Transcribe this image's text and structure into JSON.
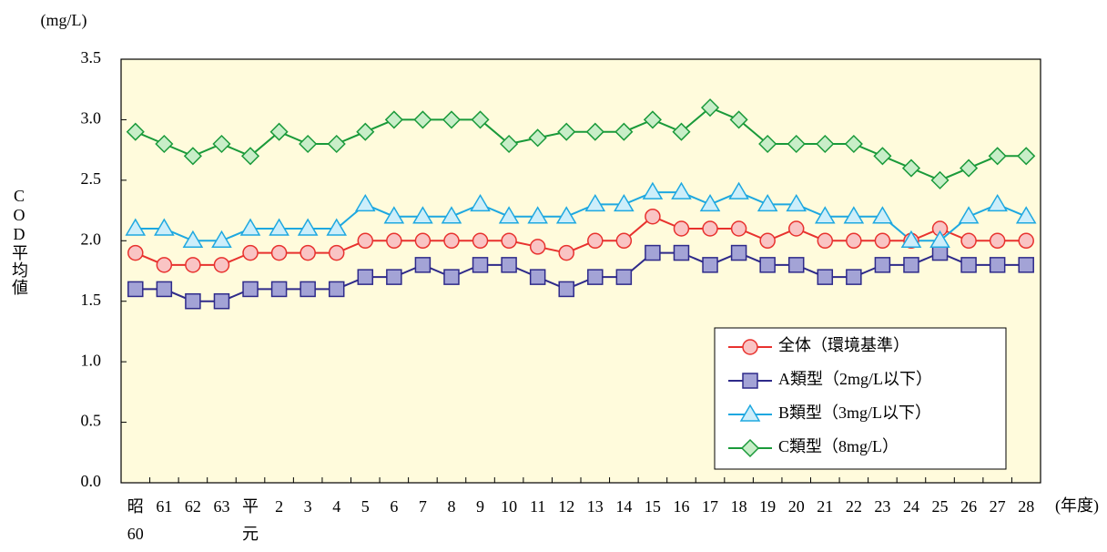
{
  "chart_data": {
    "type": "line",
    "unit_label": "(mg/L)",
    "y_label": "COD平均値",
    "x_unit_label": "(年度)",
    "categories": [
      "昭\n60",
      "61",
      "62",
      "63",
      "平\n元",
      "2",
      "3",
      "4",
      "5",
      "6",
      "7",
      "8",
      "9",
      "10",
      "11",
      "12",
      "13",
      "14",
      "15",
      "16",
      "17",
      "18",
      "19",
      "20",
      "21",
      "22",
      "23",
      "24",
      "25",
      "26",
      "27",
      "28"
    ],
    "series": [
      {
        "name": "全体（環境基準）",
        "color": "#e8322e",
        "marker_color": "#f9c4c4",
        "marker": "circle",
        "values": [
          1.9,
          1.8,
          1.8,
          1.8,
          1.9,
          1.9,
          1.9,
          1.9,
          2.0,
          2.0,
          2.0,
          2.0,
          2.0,
          2.0,
          1.95,
          1.9,
          2.0,
          2.0,
          2.2,
          2.1,
          2.1,
          2.1,
          2.0,
          2.1,
          2.0,
          2.0,
          2.0,
          2.0,
          2.1,
          2.0,
          2.0,
          2.0
        ]
      },
      {
        "name": "A類型（2mg/L以下）",
        "color": "#2e2a8a",
        "marker_color": "#a3a3d6",
        "marker": "square",
        "values": [
          1.6,
          1.6,
          1.5,
          1.5,
          1.6,
          1.6,
          1.6,
          1.6,
          1.7,
          1.7,
          1.8,
          1.7,
          1.8,
          1.8,
          1.7,
          1.6,
          1.7,
          1.7,
          1.9,
          1.9,
          1.8,
          1.9,
          1.8,
          1.8,
          1.7,
          1.7,
          1.8,
          1.8,
          1.9,
          1.8,
          1.8,
          1.8
        ]
      },
      {
        "name": "B類型（3mg/L以下）",
        "color": "#1ea8e0",
        "marker_color": "#cdeefa",
        "marker": "triangle",
        "values": [
          2.1,
          2.1,
          2.0,
          2.0,
          2.1,
          2.1,
          2.1,
          2.1,
          2.3,
          2.2,
          2.2,
          2.2,
          2.3,
          2.2,
          2.2,
          2.2,
          2.3,
          2.3,
          2.4,
          2.4,
          2.3,
          2.4,
          2.3,
          2.3,
          2.2,
          2.2,
          2.2,
          2.0,
          2.0,
          2.2,
          2.3,
          2.2
        ]
      },
      {
        "name": "C類型（8mg/L）",
        "color": "#1a9a3a",
        "marker_color": "#c8eec8",
        "marker": "diamond",
        "values": [
          2.9,
          2.8,
          2.7,
          2.8,
          2.7,
          2.9,
          2.8,
          2.8,
          2.9,
          3.0,
          3.0,
          3.0,
          3.0,
          2.8,
          2.85,
          2.9,
          2.9,
          2.9,
          3.0,
          2.9,
          3.1,
          3.0,
          2.8,
          2.8,
          2.8,
          2.8,
          2.7,
          2.6,
          2.5,
          2.6,
          2.7,
          2.7
        ]
      }
    ],
    "ylim": [
      0,
      3.5
    ],
    "yticks": [
      {
        "value": 0,
        "label": "0.0"
      },
      0.5,
      {
        "value": 1,
        "label": "1.0"
      },
      1.5,
      {
        "value": 2,
        "label": "2.0"
      },
      2.5,
      {
        "value": 3,
        "label": "3.0"
      },
      3.5
    ],
    "plot_background": "#fffbdc",
    "legend": "lower-right"
  }
}
